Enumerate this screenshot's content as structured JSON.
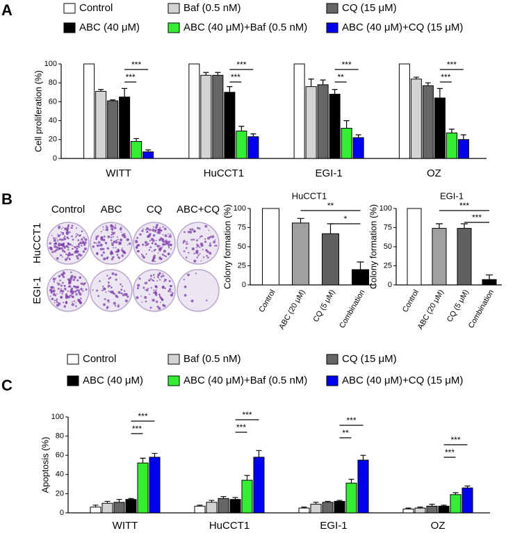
{
  "panel_labels": [
    "A",
    "B",
    "C"
  ],
  "plate_image": {
    "columns": [
      "Control",
      "ABC",
      "CQ",
      "ABC+CQ"
    ],
    "rows": [
      "HuCCT1",
      "EGI-1"
    ]
  },
  "chart_data": [
    {
      "type": "bar",
      "y_label": "Cell proliferation (%)",
      "categories": [
        "WITT",
        "HuCCT1",
        "EGI-1",
        "OZ"
      ],
      "series": [
        {
          "name": "Control",
          "color": "#ffffff",
          "values": [
            100,
            100,
            100,
            100
          ],
          "errors": [
            0,
            0,
            0,
            0
          ]
        },
        {
          "name": "Baf (0.5 nM)",
          "color": "#d3d3d3",
          "values": [
            71,
            88,
            76,
            84
          ],
          "errors": [
            2,
            3,
            8,
            2
          ]
        },
        {
          "name": "CQ (15 μM)",
          "color": "#666666",
          "values": [
            61,
            88,
            78,
            77
          ],
          "errors": [
            1,
            3,
            5,
            3
          ]
        },
        {
          "name": "ABC (40 μM)",
          "color": "#000000",
          "values": [
            65,
            70,
            68,
            64
          ],
          "errors": [
            9,
            6,
            5,
            10
          ]
        },
        {
          "name": "ABC (40 μM)+Baf (0.5 nM)",
          "color": "#33ee33",
          "values": [
            18,
            29,
            32,
            27
          ],
          "errors": [
            3,
            5,
            8,
            4
          ]
        },
        {
          "name": "ABC (40 μM)+CQ (15 μM)",
          "color": "#0000ee",
          "values": [
            7,
            23,
            22,
            20
          ],
          "errors": [
            2,
            3,
            3,
            5
          ]
        }
      ],
      "ylim": [
        0,
        100
      ],
      "yticks": [
        0,
        20,
        40,
        60,
        80,
        100
      ],
      "annotations": [
        "***",
        "***",
        "***",
        "***",
        "***",
        "**",
        "***",
        "***"
      ]
    },
    {
      "type": "bar",
      "title": "HuCCT1",
      "y_label": "Colony formation (%)",
      "categories": [
        "Control",
        "ABC (20 μM)",
        "CQ (5 μM)",
        "Combination"
      ],
      "values": [
        100,
        81,
        67,
        20
      ],
      "errors": [
        0,
        6,
        13,
        10
      ],
      "colors": [
        "#ffffff",
        "#a0a0a0",
        "#606060",
        "#000000"
      ],
      "ylim": [
        0,
        100
      ],
      "yticks": [
        0,
        25,
        50,
        75,
        100
      ],
      "annotations": [
        "**",
        "*"
      ]
    },
    {
      "type": "bar",
      "title": "EGI-1",
      "y_label": "Colony formation (%)",
      "categories": [
        "Control",
        "ABC (20 μM)",
        "CQ (5 μM)",
        "Combination"
      ],
      "values": [
        100,
        74,
        74,
        7
      ],
      "errors": [
        0,
        6,
        6,
        6
      ],
      "colors": [
        "#ffffff",
        "#a0a0a0",
        "#606060",
        "#000000"
      ],
      "ylim": [
        0,
        100
      ],
      "yticks": [
        0,
        25,
        50,
        75,
        100
      ],
      "annotations": [
        "***",
        "***"
      ]
    },
    {
      "type": "bar",
      "y_label": "Apoptosis (%)",
      "categories": [
        "WITT",
        "HuCCT1",
        "EGI-1",
        "OZ"
      ],
      "series": [
        {
          "name": "Control",
          "color": "#ffffff",
          "values": [
            6,
            7,
            5,
            4
          ],
          "errors": [
            2,
            1,
            1,
            1
          ]
        },
        {
          "name": "Baf (0.5 nM)",
          "color": "#d3d3d3",
          "values": [
            10,
            11,
            9,
            5
          ],
          "errors": [
            2,
            2,
            2,
            1
          ]
        },
        {
          "name": "CQ (15 μM)",
          "color": "#666666",
          "values": [
            11,
            15,
            11,
            7
          ],
          "errors": [
            3,
            2,
            1,
            2
          ]
        },
        {
          "name": "ABC (40 μM)",
          "color": "#000000",
          "values": [
            14,
            14,
            12,
            7
          ],
          "errors": [
            1,
            2,
            1,
            1
          ]
        },
        {
          "name": "ABC (40 μM)+Baf (0.5 nM)",
          "color": "#33ee33",
          "values": [
            52,
            34,
            31,
            19
          ],
          "errors": [
            5,
            5,
            4,
            2
          ]
        },
        {
          "name": "ABC (40 μM)+CQ (15 μM)",
          "color": "#0000ee",
          "values": [
            58,
            58,
            55,
            26
          ],
          "errors": [
            4,
            7,
            5,
            2
          ]
        }
      ],
      "ylim": [
        0,
        100
      ],
      "yticks": [
        0,
        20,
        40,
        60,
        80,
        100
      ],
      "annotations": [
        "***",
        "***",
        "***",
        "***",
        "***",
        "**",
        "***",
        "***"
      ]
    }
  ]
}
